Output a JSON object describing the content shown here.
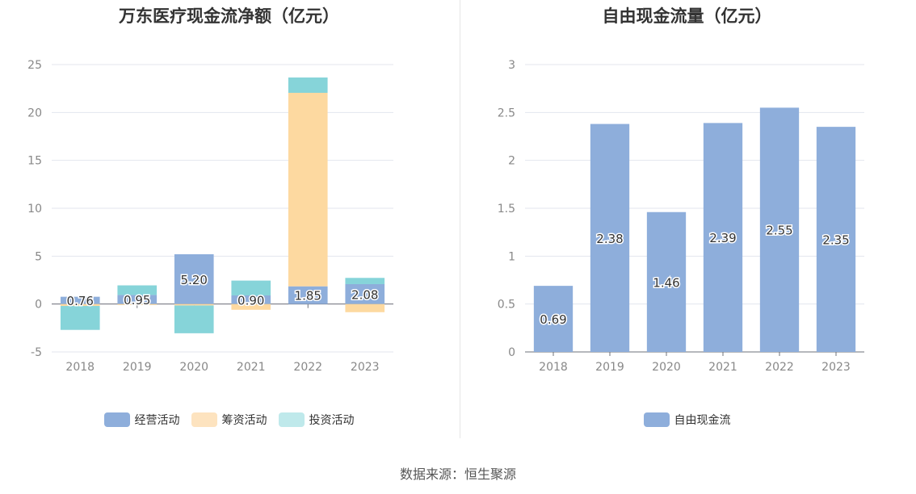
{
  "chart_data": [
    {
      "type": "bar",
      "stacked": true,
      "title": "万东医疗现金流净额（亿元）",
      "categories": [
        "2018",
        "2019",
        "2020",
        "2021",
        "2022",
        "2023"
      ],
      "ylim": [
        -5,
        25
      ],
      "yticks": [
        25,
        20,
        15,
        10,
        5,
        0,
        -5
      ],
      "grid": true,
      "legend_position": "bottom",
      "series": [
        {
          "name": "经营活动",
          "color": "#8eaedb",
          "values": [
            0.76,
            0.95,
            5.2,
            0.9,
            1.85,
            2.08
          ]
        },
        {
          "name": "筹资活动",
          "color": "#fdd9a0",
          "values": [
            -0.2,
            -0.1,
            -0.15,
            -0.6,
            20.2,
            -0.85
          ]
        },
        {
          "name": "投资活动",
          "color": "#86d4d9",
          "values": [
            -2.5,
            1.0,
            -2.9,
            1.55,
            1.6,
            0.65
          ]
        }
      ],
      "data_labels": [
        "0.76",
        "0.95",
        "5.20",
        "0.90",
        "1.85",
        "2.08"
      ]
    },
    {
      "type": "bar",
      "title": "自由现金流量（亿元）",
      "categories": [
        "2018",
        "2019",
        "2020",
        "2021",
        "2022",
        "2023"
      ],
      "ylim": [
        0,
        3
      ],
      "yticks": [
        3,
        2.5,
        2,
        1.5,
        1,
        0.5,
        0
      ],
      "grid": true,
      "legend_position": "bottom",
      "series": [
        {
          "name": "自由现金流",
          "color": "#8eaedb",
          "values": [
            0.69,
            2.38,
            1.46,
            2.39,
            2.55,
            2.35
          ]
        }
      ],
      "data_labels": [
        "0.69",
        "2.38",
        "1.46",
        "2.39",
        "2.55",
        "2.35"
      ]
    }
  ],
  "source": "数据来源：恒生聚源"
}
